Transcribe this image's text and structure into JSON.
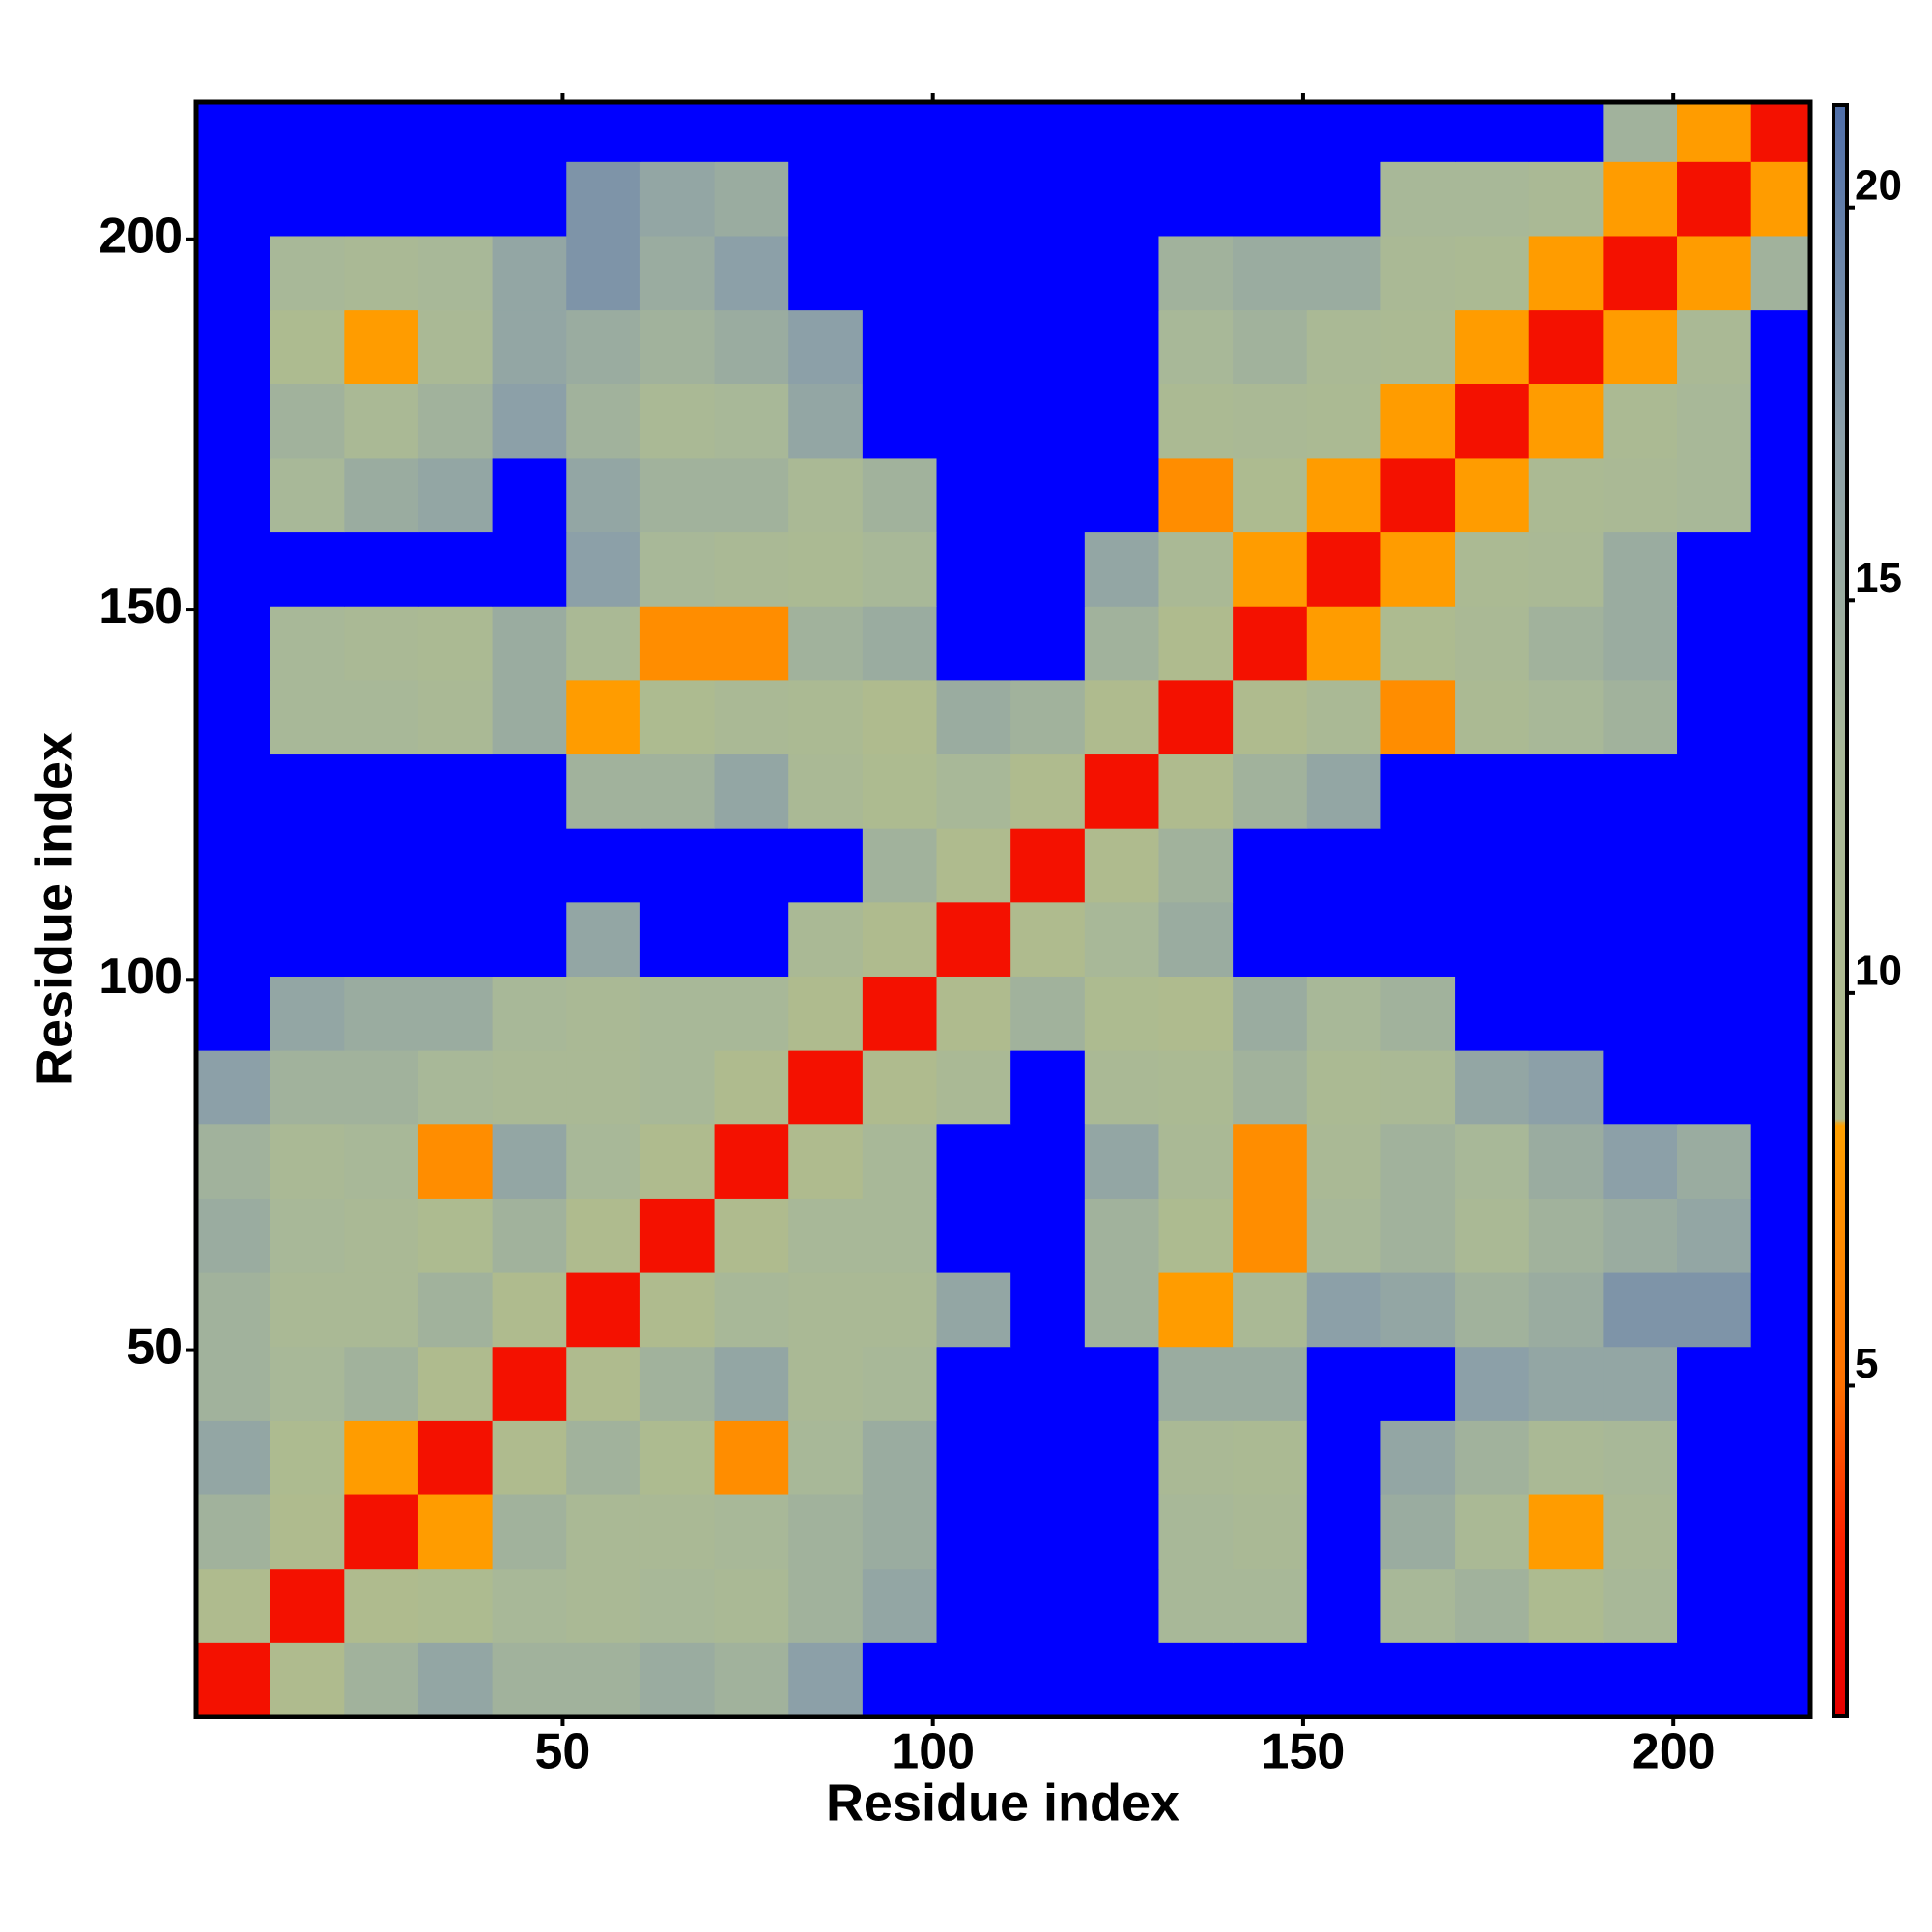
{
  "chart_data": {
    "type": "heatmap",
    "xlabel": "Residue index",
    "ylabel": "Residue index",
    "bins": [
      0.5,
      10.5,
      20.5,
      30.5,
      40.5,
      50.5,
      60.5,
      70.5,
      80.5,
      90.5,
      100.5,
      110.5,
      120.5,
      130.5,
      140.5,
      150.5,
      160.5,
      170.5,
      180.5,
      190.5,
      200.5,
      210.5,
      218.5
    ],
    "z": [
      [
        2,
        9,
        14,
        16,
        14,
        14,
        15,
        14,
        17,
        22,
        22,
        22,
        22,
        22,
        22,
        22,
        22,
        22,
        22,
        22,
        22,
        22
      ],
      [
        9,
        2,
        9,
        10,
        13,
        12,
        13,
        12,
        14,
        16,
        22,
        22,
        22,
        13,
        13,
        22,
        13,
        14,
        10,
        13,
        22,
        22
      ],
      [
        14,
        9,
        2,
        8,
        14,
        12,
        12,
        13,
        14,
        15,
        22,
        22,
        22,
        13,
        12,
        22,
        15,
        12,
        8,
        12,
        22,
        22
      ],
      [
        16,
        10,
        8,
        2,
        9,
        14,
        10,
        7,
        13,
        15,
        22,
        22,
        22,
        12,
        11,
        22,
        16,
        14,
        12,
        13,
        22,
        22
      ],
      [
        14,
        13,
        14,
        9,
        2,
        9,
        14,
        16,
        12,
        13,
        22,
        22,
        22,
        15,
        15,
        22,
        22,
        17,
        16,
        16,
        22,
        22
      ],
      [
        14,
        12,
        12,
        14,
        9,
        2,
        9,
        13,
        12,
        12,
        16,
        22,
        14,
        8,
        12,
        17,
        16,
        14,
        15,
        18,
        18,
        22
      ],
      [
        15,
        13,
        12,
        10,
        14,
        9,
        2,
        9,
        13,
        13,
        22,
        22,
        14,
        10,
        7,
        13,
        14,
        12,
        14,
        15,
        16,
        22
      ],
      [
        14,
        12,
        13,
        7,
        16,
        13,
        9,
        2,
        9,
        13,
        22,
        22,
        16,
        12,
        7,
        12,
        14,
        13,
        15,
        17,
        15,
        22
      ],
      [
        17,
        14,
        14,
        13,
        12,
        12,
        13,
        9,
        2,
        9,
        12,
        22,
        12,
        11,
        14,
        11,
        12,
        16,
        17,
        22,
        22,
        22
      ],
      [
        22,
        16,
        15,
        15,
        13,
        12,
        13,
        13,
        9,
        2,
        9,
        14,
        10,
        9,
        15,
        13,
        14,
        22,
        22,
        22,
        22,
        22
      ],
      [
        22,
        22,
        22,
        22,
        22,
        16,
        22,
        22,
        12,
        9,
        2,
        9,
        13,
        15,
        22,
        22,
        22,
        22,
        22,
        22,
        22,
        22
      ],
      [
        22,
        22,
        22,
        22,
        22,
        22,
        22,
        22,
        22,
        14,
        9,
        2,
        9,
        14,
        22,
        22,
        22,
        22,
        22,
        22,
        22,
        22
      ],
      [
        22,
        22,
        22,
        22,
        22,
        14,
        14,
        16,
        12,
        10,
        13,
        9,
        2,
        9,
        14,
        16,
        22,
        22,
        22,
        22,
        22,
        22
      ],
      [
        22,
        13,
        13,
        12,
        15,
        8,
        10,
        12,
        11,
        9,
        15,
        14,
        9,
        2,
        9,
        12,
        7,
        11,
        13,
        14,
        22,
        22
      ],
      [
        22,
        13,
        12,
        11,
        15,
        12,
        7,
        7,
        14,
        15,
        22,
        22,
        14,
        9,
        2,
        8,
        10,
        12,
        14,
        15,
        22,
        22
      ],
      [
        22,
        22,
        22,
        22,
        22,
        17,
        13,
        12,
        11,
        13,
        22,
        22,
        16,
        12,
        8,
        2,
        8,
        11,
        12,
        15,
        22,
        22
      ],
      [
        22,
        13,
        15,
        16,
        22,
        16,
        14,
        14,
        12,
        14,
        22,
        22,
        22,
        7,
        10,
        8,
        2,
        8,
        11,
        12,
        13,
        22
      ],
      [
        22,
        14,
        12,
        14,
        17,
        14,
        12,
        13,
        16,
        22,
        22,
        22,
        22,
        11,
        12,
        11,
        8,
        2,
        8,
        11,
        13,
        22
      ],
      [
        22,
        10,
        8,
        12,
        16,
        15,
        14,
        15,
        17,
        22,
        22,
        22,
        22,
        13,
        14,
        12,
        11,
        8,
        2,
        8,
        12,
        22
      ],
      [
        22,
        13,
        12,
        13,
        16,
        18,
        15,
        17,
        22,
        22,
        22,
        22,
        22,
        14,
        15,
        15,
        12,
        11,
        8,
        2,
        8,
        14
      ],
      [
        22,
        22,
        22,
        22,
        22,
        18,
        16,
        15,
        22,
        22,
        22,
        22,
        22,
        22,
        22,
        22,
        13,
        13,
        12,
        8,
        2,
        8
      ],
      [
        22,
        22,
        22,
        22,
        22,
        22,
        22,
        22,
        22,
        22,
        22,
        22,
        22,
        22,
        22,
        22,
        22,
        22,
        22,
        14,
        8,
        2
      ]
    ],
    "xlim": [
      0.5,
      218.5
    ],
    "ylim": [
      0.5,
      218.5
    ],
    "xticks": [
      50,
      100,
      150,
      200
    ],
    "yticks": [
      50,
      100,
      150,
      200
    ],
    "clim": [
      0.8,
      21.3
    ],
    "cticks": [
      5,
      10,
      15,
      20
    ],
    "colorscale": [
      [
        0.8,
        "#e60000"
      ],
      [
        3,
        "#ff2000"
      ],
      [
        5,
        "#ff7000"
      ],
      [
        8.3,
        "#ffa000"
      ],
      [
        8.4,
        "#b0bc8c"
      ],
      [
        13,
        "#a8b898"
      ],
      [
        17,
        "#8ca0a8"
      ],
      [
        21.3,
        "#4f6ea8"
      ]
    ],
    "over_color": "#0000ff"
  }
}
